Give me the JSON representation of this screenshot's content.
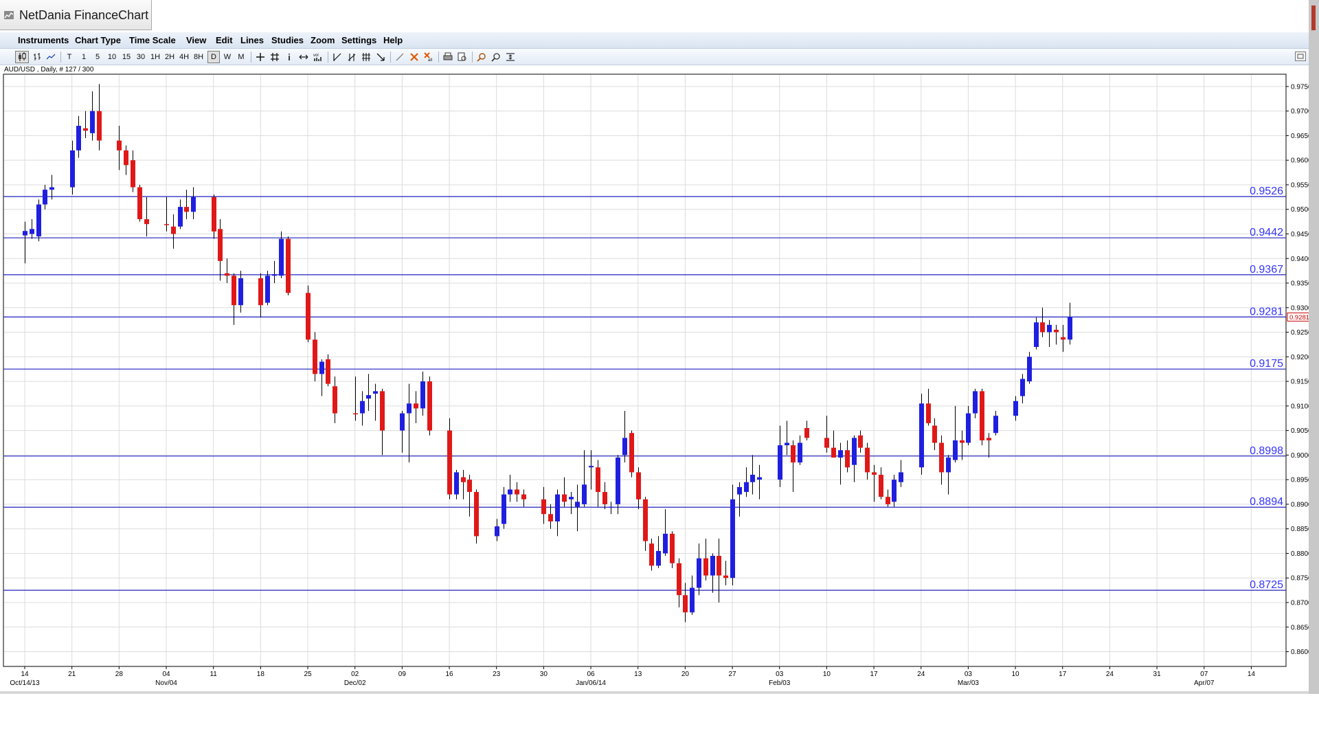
{
  "window": {
    "title": "NetDania FinanceChart"
  },
  "menu": [
    "Instruments",
    "Chart Type",
    "Time Scale",
    "View",
    "Edit",
    "Lines",
    "Studies",
    "Zoom",
    "Settings",
    "Help"
  ],
  "toolbar": {
    "timeframes": [
      "T",
      "1",
      "5",
      "10",
      "15",
      "30",
      "1H",
      "2H",
      "4H",
      "8H",
      "D",
      "W",
      "M"
    ],
    "selected_timeframe": "D",
    "icons": [
      "candlestick-icon",
      "ohlc-bar-icon",
      "line-chart-icon",
      "crosshair-icon",
      "grid-icon",
      "info-icon",
      "pan-icon",
      "volume-icon",
      "trendline-icon",
      "trendline-alt-icon",
      "fibonacci-icon",
      "arrow-icon",
      "pen-icon",
      "delete-drawing-icon",
      "delete-all-icon",
      "print-icon",
      "print-preview-icon",
      "zoom-in-icon",
      "zoom-out-icon",
      "zoom-fit-icon",
      "expand-icon"
    ]
  },
  "chart_data": {
    "type": "candlestick",
    "instrument_label": "AUD/USD , Daily, # 127 / 300",
    "colors": {
      "up": "#1f1fe0",
      "down": "#e01818",
      "wick": "#000000",
      "level_line": "#2020c0",
      "level_text": "#3333ff",
      "grid": "#dcdcdc"
    },
    "ylim": [
      0.857,
      0.9775
    ],
    "y_ticks": [
      "0.8600",
      "0.8650",
      "0.8700",
      "0.8750",
      "0.8800",
      "0.8850",
      "0.8900",
      "0.8950",
      "0.9000",
      "0.9050",
      "0.9100",
      "0.9150",
      "0.9200",
      "0.9250",
      "0.9300",
      "0.9350",
      "0.9400",
      "0.9450",
      "0.9500",
      "0.9550",
      "0.9600",
      "0.9650",
      "0.9700",
      "0.9750"
    ],
    "last_price_label": "0.9281",
    "levels": [
      {
        "value": 0.9526,
        "label": "0.9526"
      },
      {
        "value": 0.9442,
        "label": "0.9442"
      },
      {
        "value": 0.9367,
        "label": "0.9367"
      },
      {
        "value": 0.9281,
        "label": "0.9281"
      },
      {
        "value": 0.9175,
        "label": "0.9175"
      },
      {
        "value": 0.8998,
        "label": "0.8998"
      },
      {
        "value": 0.8894,
        "label": "0.8894"
      },
      {
        "value": 0.8725,
        "label": "0.8725"
      }
    ],
    "x_ticks": [
      {
        "day": 0,
        "label": "14",
        "sub": "Oct/14/13"
      },
      {
        "day": 7,
        "label": "21"
      },
      {
        "day": 14,
        "label": "28"
      },
      {
        "day": 21,
        "label": "04",
        "sub": "Nov/04"
      },
      {
        "day": 28,
        "label": "11"
      },
      {
        "day": 35,
        "label": "18"
      },
      {
        "day": 42,
        "label": "25"
      },
      {
        "day": 49,
        "label": "02",
        "sub": "Dec/02"
      },
      {
        "day": 56,
        "label": "09"
      },
      {
        "day": 63,
        "label": "16"
      },
      {
        "day": 70,
        "label": "23"
      },
      {
        "day": 77,
        "label": "30"
      },
      {
        "day": 84,
        "label": "06",
        "sub": "Jan/06/14"
      },
      {
        "day": 91,
        "label": "13"
      },
      {
        "day": 98,
        "label": "20"
      },
      {
        "day": 105,
        "label": "27"
      },
      {
        "day": 112,
        "label": "03",
        "sub": "Feb/03"
      },
      {
        "day": 119,
        "label": "10"
      },
      {
        "day": 126,
        "label": "17"
      },
      {
        "day": 133,
        "label": "24"
      },
      {
        "day": 140,
        "label": "03",
        "sub": "Mar/03"
      },
      {
        "day": 147,
        "label": "10"
      },
      {
        "day": 154,
        "label": "17"
      },
      {
        "day": 161,
        "label": "24"
      },
      {
        "day": 168,
        "label": "31"
      },
      {
        "day": 175,
        "label": "07",
        "sub": "Apr/07"
      },
      {
        "day": 182,
        "label": "14"
      }
    ],
    "candles": [
      {
        "day": 0,
        "o": 0.9447,
        "h": 0.9475,
        "l": 0.939,
        "c": 0.9456
      },
      {
        "day": 1,
        "o": 0.945,
        "h": 0.948,
        "l": 0.944,
        "c": 0.946
      },
      {
        "day": 2,
        "o": 0.9445,
        "h": 0.952,
        "l": 0.9435,
        "c": 0.951
      },
      {
        "day": 3,
        "o": 0.951,
        "h": 0.955,
        "l": 0.95,
        "c": 0.954
      },
      {
        "day": 4,
        "o": 0.954,
        "h": 0.957,
        "l": 0.952,
        "c": 0.9545
      },
      {
        "day": 7,
        "o": 0.9545,
        "h": 0.964,
        "l": 0.953,
        "c": 0.962
      },
      {
        "day": 8,
        "o": 0.962,
        "h": 0.969,
        "l": 0.9605,
        "c": 0.967
      },
      {
        "day": 9,
        "o": 0.9665,
        "h": 0.97,
        "l": 0.9645,
        "c": 0.966
      },
      {
        "day": 10,
        "o": 0.9655,
        "h": 0.974,
        "l": 0.964,
        "c": 0.97
      },
      {
        "day": 11,
        "o": 0.97,
        "h": 0.9755,
        "l": 0.962,
        "c": 0.964
      },
      {
        "day": 14,
        "o": 0.964,
        "h": 0.967,
        "l": 0.958,
        "c": 0.962
      },
      {
        "day": 15,
        "o": 0.962,
        "h": 0.963,
        "l": 0.957,
        "c": 0.959
      },
      {
        "day": 16,
        "o": 0.96,
        "h": 0.962,
        "l": 0.9535,
        "c": 0.9545
      },
      {
        "day": 17,
        "o": 0.9545,
        "h": 0.955,
        "l": 0.9475,
        "c": 0.948
      },
      {
        "day": 18,
        "o": 0.948,
        "h": 0.9525,
        "l": 0.9445,
        "c": 0.947
      },
      {
        "day": 21,
        "o": 0.947,
        "h": 0.9525,
        "l": 0.9455,
        "c": 0.9468
      },
      {
        "day": 22,
        "o": 0.9465,
        "h": 0.949,
        "l": 0.942,
        "c": 0.945
      },
      {
        "day": 23,
        "o": 0.9465,
        "h": 0.952,
        "l": 0.946,
        "c": 0.9505
      },
      {
        "day": 24,
        "o": 0.9505,
        "h": 0.954,
        "l": 0.948,
        "c": 0.9495
      },
      {
        "day": 25,
        "o": 0.9495,
        "h": 0.9545,
        "l": 0.948,
        "c": 0.9525
      },
      {
        "day": 28,
        "o": 0.9525,
        "h": 0.953,
        "l": 0.944,
        "c": 0.9455
      },
      {
        "day": 29,
        "o": 0.946,
        "h": 0.948,
        "l": 0.9355,
        "c": 0.9395
      },
      {
        "day": 30,
        "o": 0.937,
        "h": 0.94,
        "l": 0.935,
        "c": 0.9365
      },
      {
        "day": 31,
        "o": 0.9365,
        "h": 0.937,
        "l": 0.9265,
        "c": 0.9305
      },
      {
        "day": 32,
        "o": 0.9305,
        "h": 0.9375,
        "l": 0.929,
        "c": 0.936
      },
      {
        "day": 35,
        "o": 0.936,
        "h": 0.937,
        "l": 0.928,
        "c": 0.9305
      },
      {
        "day": 36,
        "o": 0.931,
        "h": 0.9375,
        "l": 0.9305,
        "c": 0.9365
      },
      {
        "day": 37,
        "o": 0.9365,
        "h": 0.9395,
        "l": 0.935,
        "c": 0.9368
      },
      {
        "day": 38,
        "o": 0.9365,
        "h": 0.9455,
        "l": 0.936,
        "c": 0.944
      },
      {
        "day": 39,
        "o": 0.944,
        "h": 0.9445,
        "l": 0.9325,
        "c": 0.933
      },
      {
        "day": 42,
        "o": 0.933,
        "h": 0.9345,
        "l": 0.923,
        "c": 0.9235
      },
      {
        "day": 43,
        "o": 0.9235,
        "h": 0.925,
        "l": 0.915,
        "c": 0.9165
      },
      {
        "day": 44,
        "o": 0.9165,
        "h": 0.9195,
        "l": 0.912,
        "c": 0.919
      },
      {
        "day": 45,
        "o": 0.9195,
        "h": 0.9205,
        "l": 0.914,
        "c": 0.9145
      },
      {
        "day": 46,
        "o": 0.914,
        "h": 0.916,
        "l": 0.9065,
        "c": 0.9085
      },
      {
        "day": 49,
        "o": 0.9085,
        "h": 0.916,
        "l": 0.907,
        "c": 0.9083
      },
      {
        "day": 50,
        "o": 0.9085,
        "h": 0.913,
        "l": 0.906,
        "c": 0.911
      },
      {
        "day": 51,
        "o": 0.9115,
        "h": 0.9165,
        "l": 0.909,
        "c": 0.9122
      },
      {
        "day": 52,
        "o": 0.9125,
        "h": 0.9145,
        "l": 0.907,
        "c": 0.913
      },
      {
        "day": 53,
        "o": 0.913,
        "h": 0.9135,
        "l": 0.9,
        "c": 0.905
      },
      {
        "day": 56,
        "o": 0.905,
        "h": 0.909,
        "l": 0.9005,
        "c": 0.9085
      },
      {
        "day": 57,
        "o": 0.9085,
        "h": 0.9145,
        "l": 0.8985,
        "c": 0.9105
      },
      {
        "day": 58,
        "o": 0.9105,
        "h": 0.913,
        "l": 0.9065,
        "c": 0.9095
      },
      {
        "day": 59,
        "o": 0.9095,
        "h": 0.917,
        "l": 0.908,
        "c": 0.915
      },
      {
        "day": 60,
        "o": 0.915,
        "h": 0.916,
        "l": 0.904,
        "c": 0.905
      },
      {
        "day": 63,
        "o": 0.905,
        "h": 0.9075,
        "l": 0.891,
        "c": 0.892
      },
      {
        "day": 64,
        "o": 0.892,
        "h": 0.897,
        "l": 0.891,
        "c": 0.8965
      },
      {
        "day": 65,
        "o": 0.8955,
        "h": 0.897,
        "l": 0.891,
        "c": 0.8945
      },
      {
        "day": 66,
        "o": 0.895,
        "h": 0.896,
        "l": 0.8875,
        "c": 0.8925
      },
      {
        "day": 67,
        "o": 0.8925,
        "h": 0.893,
        "l": 0.882,
        "c": 0.8835
      },
      {
        "day": 70,
        "o": 0.8835,
        "h": 0.887,
        "l": 0.8825,
        "c": 0.8855
      },
      {
        "day": 71,
        "o": 0.886,
        "h": 0.8935,
        "l": 0.885,
        "c": 0.892
      },
      {
        "day": 72,
        "o": 0.892,
        "h": 0.896,
        "l": 0.8905,
        "c": 0.893
      },
      {
        "day": 73,
        "o": 0.893,
        "h": 0.8945,
        "l": 0.8905,
        "c": 0.892
      },
      {
        "day": 74,
        "o": 0.892,
        "h": 0.893,
        "l": 0.8895,
        "c": 0.891
      },
      {
        "day": 77,
        "o": 0.891,
        "h": 0.8935,
        "l": 0.886,
        "c": 0.888
      },
      {
        "day": 78,
        "o": 0.888,
        "h": 0.89,
        "l": 0.885,
        "c": 0.8865
      },
      {
        "day": 79,
        "o": 0.8865,
        "h": 0.893,
        "l": 0.8835,
        "c": 0.892
      },
      {
        "day": 80,
        "o": 0.892,
        "h": 0.8955,
        "l": 0.8895,
        "c": 0.8905
      },
      {
        "day": 81,
        "o": 0.891,
        "h": 0.8925,
        "l": 0.888,
        "c": 0.8915
      },
      {
        "day": 82,
        "o": 0.8895,
        "h": 0.894,
        "l": 0.8845,
        "c": 0.8905
      },
      {
        "day": 83,
        "o": 0.89,
        "h": 0.901,
        "l": 0.8895,
        "c": 0.894
      },
      {
        "day": 84,
        "o": 0.8975,
        "h": 0.901,
        "l": 0.893,
        "c": 0.8978
      },
      {
        "day": 85,
        "o": 0.8975,
        "h": 0.899,
        "l": 0.8895,
        "c": 0.8925
      },
      {
        "day": 86,
        "o": 0.8925,
        "h": 0.8945,
        "l": 0.889,
        "c": 0.89
      },
      {
        "day": 87,
        "o": 0.8895,
        "h": 0.8905,
        "l": 0.888,
        "c": 0.8895
      },
      {
        "day": 88,
        "o": 0.89,
        "h": 0.9,
        "l": 0.888,
        "c": 0.8995
      },
      {
        "day": 89,
        "o": 0.9,
        "h": 0.909,
        "l": 0.8985,
        "c": 0.9035
      },
      {
        "day": 90,
        "o": 0.9045,
        "h": 0.905,
        "l": 0.8955,
        "c": 0.8965
      },
      {
        "day": 91,
        "o": 0.8965,
        "h": 0.8975,
        "l": 0.889,
        "c": 0.891
      },
      {
        "day": 92,
        "o": 0.891,
        "h": 0.8915,
        "l": 0.8805,
        "c": 0.8825
      },
      {
        "day": 93,
        "o": 0.882,
        "h": 0.883,
        "l": 0.8765,
        "c": 0.8775
      },
      {
        "day": 94,
        "o": 0.8775,
        "h": 0.8835,
        "l": 0.877,
        "c": 0.8805
      },
      {
        "day": 95,
        "o": 0.88,
        "h": 0.889,
        "l": 0.8795,
        "c": 0.884
      },
      {
        "day": 96,
        "o": 0.884,
        "h": 0.8845,
        "l": 0.877,
        "c": 0.878
      },
      {
        "day": 97,
        "o": 0.878,
        "h": 0.879,
        "l": 0.869,
        "c": 0.8715
      },
      {
        "day": 98,
        "o": 0.8715,
        "h": 0.874,
        "l": 0.866,
        "c": 0.868
      },
      {
        "day": 99,
        "o": 0.868,
        "h": 0.8755,
        "l": 0.8675,
        "c": 0.873
      },
      {
        "day": 100,
        "o": 0.873,
        "h": 0.882,
        "l": 0.8715,
        "c": 0.879
      },
      {
        "day": 101,
        "o": 0.879,
        "h": 0.883,
        "l": 0.8745,
        "c": 0.8755
      },
      {
        "day": 102,
        "o": 0.8755,
        "h": 0.88,
        "l": 0.872,
        "c": 0.8795
      },
      {
        "day": 103,
        "o": 0.8795,
        "h": 0.883,
        "l": 0.87,
        "c": 0.8755
      },
      {
        "day": 104,
        "o": 0.8755,
        "h": 0.8785,
        "l": 0.8735,
        "c": 0.875
      },
      {
        "day": 105,
        "o": 0.875,
        "h": 0.894,
        "l": 0.8735,
        "c": 0.891
      },
      {
        "day": 106,
        "o": 0.892,
        "h": 0.8945,
        "l": 0.8875,
        "c": 0.8935
      },
      {
        "day": 107,
        "o": 0.8925,
        "h": 0.8975,
        "l": 0.8915,
        "c": 0.8945
      },
      {
        "day": 108,
        "o": 0.8945,
        "h": 0.9,
        "l": 0.892,
        "c": 0.896
      },
      {
        "day": 109,
        "o": 0.895,
        "h": 0.898,
        "l": 0.891,
        "c": 0.8955
      },
      {
        "day": 112,
        "o": 0.895,
        "h": 0.906,
        "l": 0.8935,
        "c": 0.902
      },
      {
        "day": 113,
        "o": 0.902,
        "h": 0.907,
        "l": 0.9,
        "c": 0.9025
      },
      {
        "day": 114,
        "o": 0.902,
        "h": 0.903,
        "l": 0.8925,
        "c": 0.8985
      },
      {
        "day": 115,
        "o": 0.8985,
        "h": 0.904,
        "l": 0.898,
        "c": 0.9025
      },
      {
        "day": 116,
        "o": 0.9055,
        "h": 0.907,
        "l": 0.903,
        "c": 0.9035
      },
      {
        "day": 119,
        "o": 0.9035,
        "h": 0.908,
        "l": 0.9005,
        "c": 0.9015
      },
      {
        "day": 120,
        "o": 0.9015,
        "h": 0.905,
        "l": 0.9,
        "c": 0.8995
      },
      {
        "day": 121,
        "o": 0.8995,
        "h": 0.9025,
        "l": 0.894,
        "c": 0.901
      },
      {
        "day": 122,
        "o": 0.901,
        "h": 0.903,
        "l": 0.8965,
        "c": 0.8975
      },
      {
        "day": 123,
        "o": 0.898,
        "h": 0.904,
        "l": 0.8945,
        "c": 0.9035
      },
      {
        "day": 124,
        "o": 0.904,
        "h": 0.905,
        "l": 0.9005,
        "c": 0.9015
      },
      {
        "day": 125,
        "o": 0.9015,
        "h": 0.9025,
        "l": 0.895,
        "c": 0.8965
      },
      {
        "day": 126,
        "o": 0.8965,
        "h": 0.898,
        "l": 0.8905,
        "c": 0.896
      },
      {
        "day": 127,
        "o": 0.896,
        "h": 0.8975,
        "l": 0.891,
        "c": 0.8915
      },
      {
        "day": 128,
        "o": 0.8915,
        "h": 0.893,
        "l": 0.8895,
        "c": 0.89
      },
      {
        "day": 129,
        "o": 0.8905,
        "h": 0.896,
        "l": 0.8895,
        "c": 0.895
      },
      {
        "day": 130,
        "o": 0.8945,
        "h": 0.899,
        "l": 0.8935,
        "c": 0.8965
      },
      {
        "day": 133,
        "o": 0.8975,
        "h": 0.9125,
        "l": 0.896,
        "c": 0.9105
      },
      {
        "day": 134,
        "o": 0.9105,
        "h": 0.9135,
        "l": 0.906,
        "c": 0.9065
      },
      {
        "day": 135,
        "o": 0.906,
        "h": 0.9075,
        "l": 0.901,
        "c": 0.9025
      },
      {
        "day": 136,
        "o": 0.9025,
        "h": 0.904,
        "l": 0.894,
        "c": 0.8965
      },
      {
        "day": 137,
        "o": 0.8965,
        "h": 0.9,
        "l": 0.892,
        "c": 0.8995
      },
      {
        "day": 138,
        "o": 0.899,
        "h": 0.91,
        "l": 0.8985,
        "c": 0.903
      },
      {
        "day": 139,
        "o": 0.903,
        "h": 0.905,
        "l": 0.899,
        "c": 0.9025
      },
      {
        "day": 140,
        "o": 0.9025,
        "h": 0.91,
        "l": 0.902,
        "c": 0.9085
      },
      {
        "day": 141,
        "o": 0.9085,
        "h": 0.9135,
        "l": 0.9075,
        "c": 0.913
      },
      {
        "day": 142,
        "o": 0.913,
        "h": 0.9135,
        "l": 0.902,
        "c": 0.903
      },
      {
        "day": 143,
        "o": 0.9035,
        "h": 0.9045,
        "l": 0.8995,
        "c": 0.903
      },
      {
        "day": 144,
        "o": 0.9045,
        "h": 0.909,
        "l": 0.904,
        "c": 0.908
      },
      {
        "day": 147,
        "o": 0.908,
        "h": 0.912,
        "l": 0.907,
        "c": 0.911
      },
      {
        "day": 148,
        "o": 0.912,
        "h": 0.9165,
        "l": 0.9105,
        "c": 0.9155
      },
      {
        "day": 149,
        "o": 0.915,
        "h": 0.921,
        "l": 0.9145,
        "c": 0.92
      },
      {
        "day": 150,
        "o": 0.922,
        "h": 0.928,
        "l": 0.9215,
        "c": 0.927
      },
      {
        "day": 151,
        "o": 0.927,
        "h": 0.93,
        "l": 0.924,
        "c": 0.925
      },
      {
        "day": 152,
        "o": 0.925,
        "h": 0.9275,
        "l": 0.922,
        "c": 0.9265
      },
      {
        "day": 153,
        "o": 0.9255,
        "h": 0.9265,
        "l": 0.9225,
        "c": 0.925
      },
      {
        "day": 154,
        "o": 0.924,
        "h": 0.9265,
        "l": 0.921,
        "c": 0.9235
      },
      {
        "day": 155,
        "o": 0.9235,
        "h": 0.931,
        "l": 0.9225,
        "c": 0.9281
      }
    ]
  }
}
